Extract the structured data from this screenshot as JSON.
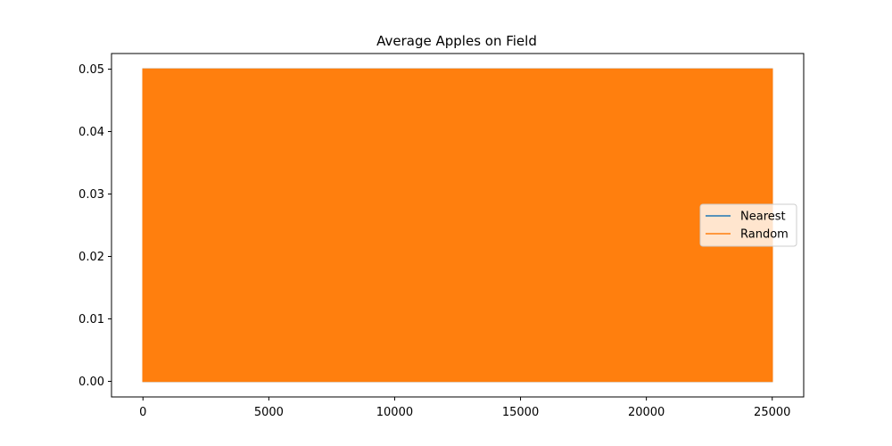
{
  "chart_data": {
    "type": "line",
    "title": "Average Apples on Field",
    "xlabel": "",
    "ylabel": "",
    "xlim": [
      -1250,
      26250
    ],
    "ylim": [
      -0.0025,
      0.0525
    ],
    "xticks": [
      0,
      5000,
      10000,
      15000,
      20000,
      25000
    ],
    "xtick_labels": [
      "0",
      "5000",
      "10000",
      "15000",
      "20000",
      "25000"
    ],
    "yticks": [
      0.0,
      0.01,
      0.02,
      0.03,
      0.04,
      0.05
    ],
    "ytick_labels": [
      "0.00",
      "0.01",
      "0.02",
      "0.03",
      "0.04",
      "0.05"
    ],
    "grid": false,
    "legend_placement": "center-right",
    "series": [
      {
        "name": "Nearest",
        "color": "#1f77b4",
        "x_range": [
          0,
          25000
        ],
        "y_min": 0.0,
        "y_max": 0.05,
        "pattern": "rapid oscillation between 0.00 and 0.05 across all steps"
      },
      {
        "name": "Random",
        "color": "#ff7f0e",
        "x_range": [
          0,
          25000
        ],
        "y_min": 0.0,
        "y_max": 0.05,
        "pattern": "rapid oscillation between 0.00 and 0.05 across all steps"
      }
    ]
  }
}
